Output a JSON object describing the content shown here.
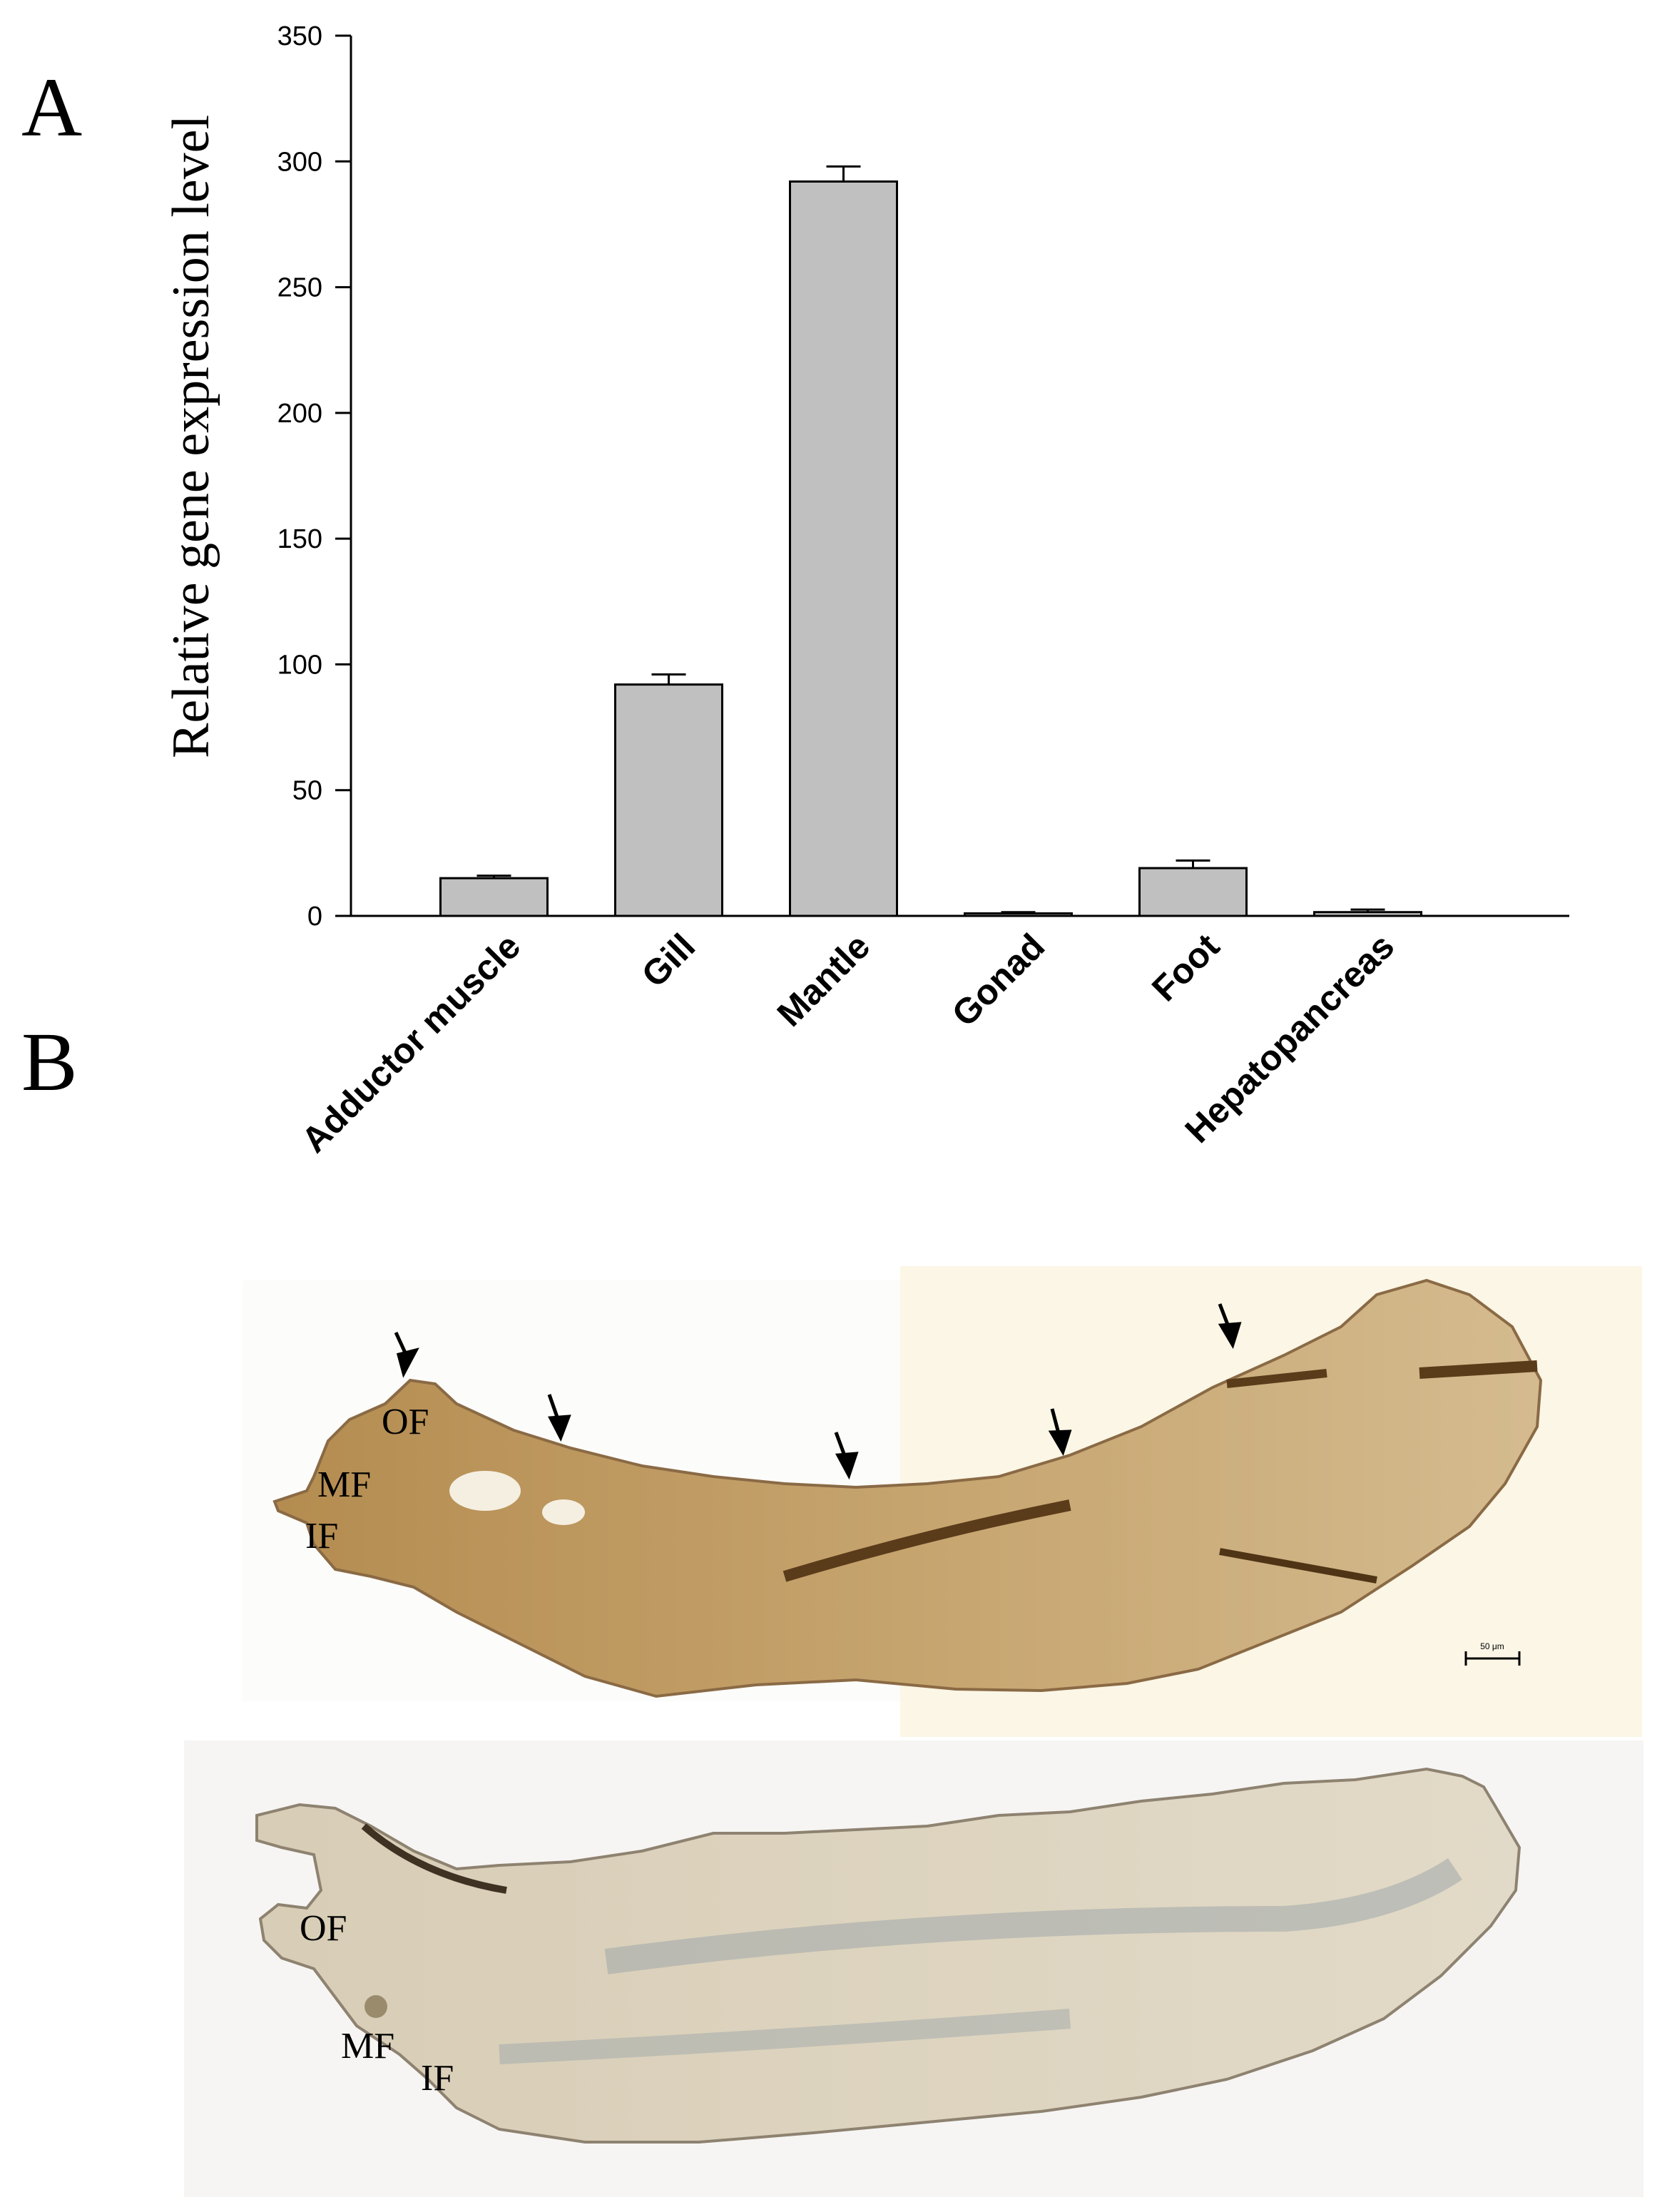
{
  "panels": {
    "a": "A",
    "b": "B"
  },
  "chart_data": {
    "type": "bar",
    "title": "",
    "xlabel": "",
    "ylabel": "Relative gene expression level",
    "ylim": [
      0,
      350
    ],
    "yticks": [
      0,
      50,
      100,
      150,
      200,
      250,
      300,
      350
    ],
    "grid": false,
    "categories": [
      "Adductor muscle",
      "Gill",
      "Mantle",
      "Gonad",
      "Foot",
      "Hepatopancreas"
    ],
    "values": [
      15,
      92,
      292,
      1,
      19,
      1.5
    ],
    "errors": [
      1,
      4,
      6,
      0.5,
      3,
      1
    ],
    "bar_color": "#c0c0c0"
  },
  "micrograph_top": {
    "labels": [
      "OF",
      "MF",
      "IF"
    ],
    "scale_bar": "50 μm",
    "tissue_color": "#b8955c"
  },
  "micrograph_bottom": {
    "labels": [
      "OF",
      "MF",
      "IF"
    ],
    "tissue_color": "#cfc6b4"
  }
}
